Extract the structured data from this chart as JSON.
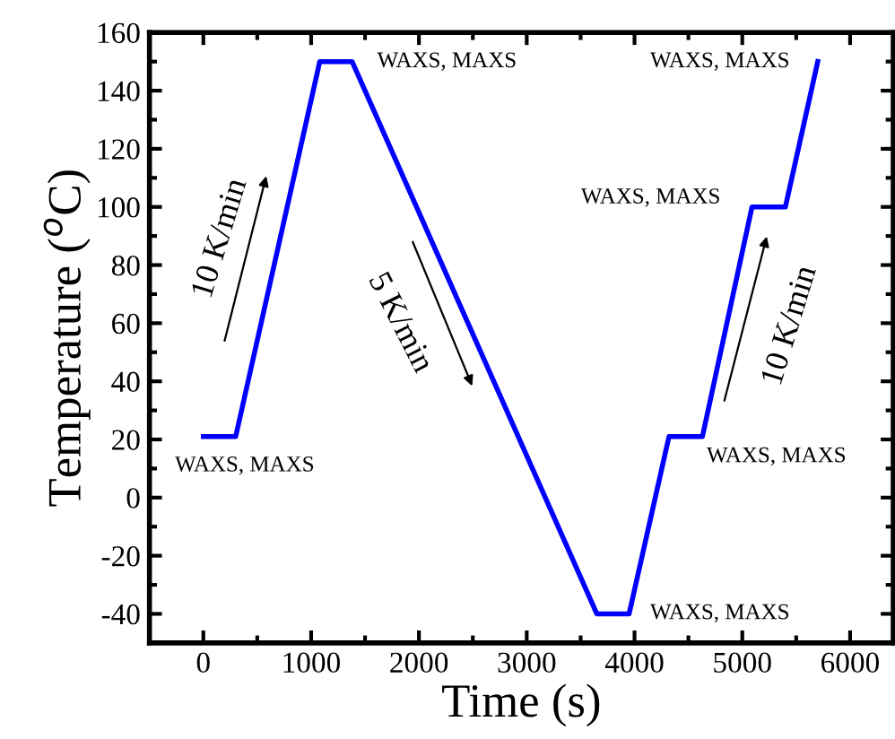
{
  "chart_data": {
    "type": "line",
    "xlabel": "Time (s)",
    "ylabel": "Temperature ($^{o}$C)",
    "x": [
      0,
      300,
      1080,
      1380,
      3650,
      3950,
      4320,
      4630,
      5090,
      5400,
      5700
    ],
    "series": [
      {
        "color": "#0000ff",
        "values": [
          21,
          21,
          150,
          150,
          -40,
          -40,
          21,
          21,
          100,
          100,
          150
        ]
      }
    ],
    "xlim": [
      -500,
      6400
    ],
    "xticks": [
      0,
      1000,
      2000,
      3000,
      4000,
      5000,
      6000
    ],
    "ylim": [
      -50,
      160
    ],
    "yticks": [
      -40,
      -20,
      0,
      20,
      40,
      60,
      80,
      100,
      120,
      140,
      160
    ],
    "grid": false,
    "legend": false,
    "marker": "none",
    "line_style": "solid",
    "annotations": [
      "WAXS, MAXS",
      "WAXS, MAXS",
      "WAXS, MAXS",
      "WAXS, MAXS",
      "WAXS, MAXS",
      "WAXS, MAXS",
      "10 K/min",
      "5 K/min",
      "10 K/min"
    ]
  }
}
